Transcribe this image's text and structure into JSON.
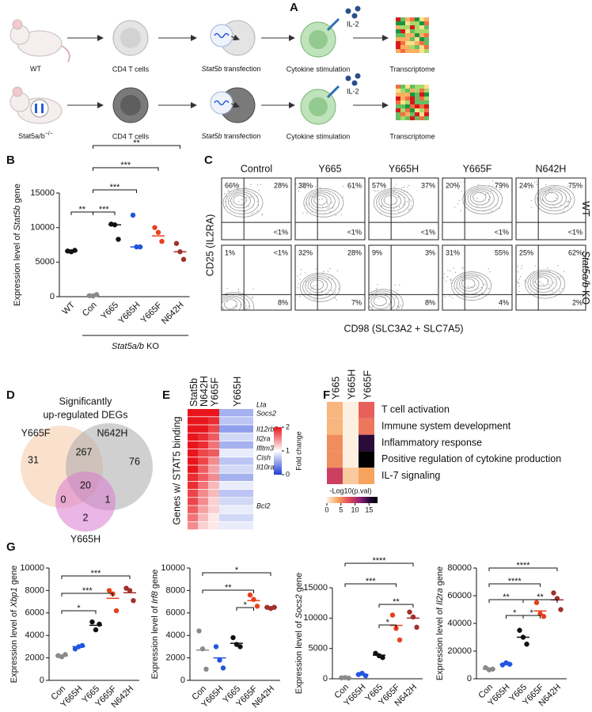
{
  "panel_a": {
    "label": "A",
    "rows": [
      {
        "source": {
          "name": "WT"
        },
        "cells": "CD4 T cells",
        "transfection": {
          "gene": "Stat5b",
          "text": " transfection"
        },
        "stimulation": "Cytokine stimulation",
        "cytokine": "IL-2",
        "readout": "Transcriptome"
      },
      {
        "source": {
          "name": "Stat5a/b",
          "sup": "−/−"
        },
        "cells": "CD4 T cells",
        "transfection": {
          "gene": "Stat5b",
          "text": " transfection"
        },
        "stimulation": "Cytokine stimulation",
        "cytokine": "IL-2",
        "readout": "Transcriptome"
      }
    ]
  },
  "panel_b": {
    "label": "B",
    "ylabel": {
      "pre": "Expression level of ",
      "gene": "Stat5b",
      "post": " gene"
    },
    "categories": [
      "WT",
      "Con",
      "Y665",
      "Y665H",
      "Y665F",
      "N642H"
    ],
    "colors": [
      "#111111",
      "#8a8a8a",
      "#111111",
      "#2255e0",
      "#e8401c",
      "#a0302c"
    ],
    "points": [
      [
        6600,
        6500,
        6700
      ],
      [
        150,
        100,
        300
      ],
      [
        10500,
        10400,
        8300
      ],
      [
        11800,
        7200,
        7200
      ],
      [
        10000,
        9300,
        8000
      ],
      [
        7700,
        6500,
        5400
      ]
    ],
    "means": [
      6600,
      180,
      10400,
      7200,
      8800,
      6500
    ],
    "ylim": [
      0,
      15000
    ],
    "yticks": [
      0,
      5000,
      10000,
      15000
    ],
    "group_label": {
      "gene": "Stat5a/b",
      "text": " KO"
    },
    "significance": [
      {
        "from": 0,
        "to": 1,
        "label": "**"
      },
      {
        "from": 1,
        "to": 2,
        "label": "***"
      },
      {
        "from": 1,
        "to": 3,
        "label": "***"
      },
      {
        "from": 1,
        "to": 4,
        "label": "***"
      },
      {
        "from": 1,
        "to": 5,
        "label": "**"
      }
    ]
  },
  "panel_c": {
    "label": "C",
    "columns": [
      "Control",
      "Y665",
      "Y665H",
      "Y665F",
      "N642H"
    ],
    "rows": [
      {
        "name": {
          "text": "WT"
        },
        "quadrants": [
          [
            "66%",
            "28%",
            "<1%"
          ],
          [
            "38%",
            "61%",
            "<1%"
          ],
          [
            "57%",
            "37%",
            "<1%"
          ],
          [
            "20%",
            "79%",
            "<1%"
          ],
          [
            "24%",
            "75%",
            "<1%"
          ]
        ]
      },
      {
        "name": {
          "gene": "Stat5a/b",
          "text": " KO"
        },
        "quadrants": [
          [
            "1%",
            "<1%",
            "8%"
          ],
          [
            "32%",
            "28%",
            "7%"
          ],
          [
            "9%",
            "3%",
            "8%"
          ],
          [
            "31%",
            "55%",
            "4%"
          ],
          [
            "25%",
            "62%",
            "2%"
          ]
        ]
      }
    ],
    "xlabel": "CD98 (SLC3A2 + SLC7A5)",
    "ylabel": "CD25 (IL2RA)"
  },
  "panel_d": {
    "label": "D",
    "title": [
      "Significantly",
      "up-regulated DEGs"
    ],
    "sets": [
      "Y665F",
      "N642H",
      "Y665H"
    ],
    "regions": [
      31,
      267,
      76,
      20,
      0,
      1,
      2
    ]
  },
  "panel_e": {
    "label": "E",
    "columns": [
      "Stat5b",
      "N642H",
      "Y665F",
      "Y665H"
    ],
    "ylabel": "Genes w/ STAT5 binding",
    "genes": [
      "Lta",
      "Socs2",
      "Il12rb2",
      "Il2ra",
      "Ifitm3",
      "Cish",
      "Il10ra",
      "Bcl2"
    ],
    "values": [
      [
        2,
        2,
        2,
        0.6
      ],
      [
        2,
        2,
        1.9,
        0.7
      ],
      [
        2,
        2,
        1.8,
        0.5
      ],
      [
        2,
        1.9,
        1.7,
        0.8
      ],
      [
        2,
        1.9,
        1.6,
        0.6
      ],
      [
        2,
        1.8,
        1.7,
        0.9
      ],
      [
        2,
        1.8,
        1.5,
        0.7
      ],
      [
        2,
        1.7,
        1.4,
        0.8
      ],
      [
        1.9,
        1.7,
        1.5,
        0.6
      ],
      [
        1.9,
        1.6,
        1.3,
        0.9
      ],
      [
        1.8,
        1.5,
        1.3,
        0.7
      ],
      [
        1.8,
        1.5,
        1.2,
        0.8
      ],
      [
        1.7,
        1.4,
        1.2,
        0.9
      ],
      [
        1.6,
        1.3,
        1.1,
        0.8
      ],
      [
        1.5,
        1.2,
        1.1,
        0.9
      ]
    ],
    "clim": [
      0,
      2
    ],
    "cticks": [
      0,
      1,
      2
    ],
    "clabel": "Fold change"
  },
  "panel_f": {
    "label": "F",
    "columns": [
      "Y665",
      "Y665H",
      "Y665F"
    ],
    "terms": [
      "T cell activation",
      "Immune system development",
      "Inflammatory response",
      "Positive regulation of cytokine production",
      "IL-7 signaling"
    ],
    "values": [
      [
        3,
        0,
        7
      ],
      [
        3,
        0,
        6
      ],
      [
        5,
        0,
        15
      ],
      [
        5,
        0,
        18
      ],
      [
        9,
        2,
        4
      ]
    ],
    "clim": [
      0,
      18
    ],
    "cticks": [
      0,
      5,
      10,
      15
    ],
    "clabel": "-Log10(p.val)"
  },
  "panel_g": {
    "label": "G",
    "categories": [
      "Con",
      "Y665H",
      "Y665",
      "Y665F",
      "N642H"
    ],
    "colors": [
      "#8a8a8a",
      "#2255e0",
      "#111111",
      "#e8401c",
      "#a0302c"
    ],
    "plots": [
      {
        "ylabel": {
          "pre": "Expression level of ",
          "gene": "Xbp1",
          "post": " gene"
        },
        "points": [
          [
            2200,
            2100,
            2300
          ],
          [
            2800,
            3000,
            3100
          ],
          [
            5200,
            4500,
            5000
          ],
          [
            8000,
            7700,
            6200
          ],
          [
            8200,
            8000,
            7100
          ]
        ],
        "means": [
          2200,
          3000,
          4900,
          7300,
          7800
        ],
        "ylim": [
          0,
          10000
        ],
        "yticks": [
          0,
          2000,
          4000,
          6000,
          8000,
          10000
        ],
        "significance": [
          {
            "from": 0,
            "to": 2,
            "label": "*"
          },
          {
            "from": 0,
            "to": 3,
            "label": "***"
          },
          {
            "from": 0,
            "to": 4,
            "label": "***"
          }
        ]
      },
      {
        "ylabel": {
          "pre": "Expression level of ",
          "gene": "Irf8",
          "post": " gene"
        },
        "points": [
          [
            4400,
            2800,
            1000
          ],
          [
            3000,
            1800,
            1100
          ],
          [
            3800,
            3200,
            3000
          ],
          [
            7600,
            7200,
            6600
          ],
          [
            6500,
            6400,
            6500
          ]
        ],
        "means": [
          2700,
          2000,
          3300,
          7100,
          6500
        ],
        "ylim": [
          0,
          10000
        ],
        "yticks": [
          0,
          2000,
          4000,
          6000,
          8000,
          10000
        ],
        "significance": [
          {
            "from": 2,
            "to": 3,
            "label": "*"
          },
          {
            "from": 0,
            "to": 3,
            "label": "**"
          },
          {
            "from": 0,
            "to": 4,
            "label": "*"
          }
        ]
      },
      {
        "ylabel": {
          "pre": "Expression level of ",
          "gene": "Socs2",
          "post": " gene"
        },
        "points": [
          [
            150,
            200,
            100
          ],
          [
            700,
            900,
            500
          ],
          [
            4200,
            3800,
            3500
          ],
          [
            10500,
            8300,
            6400
          ],
          [
            11000,
            10200,
            8500
          ]
        ],
        "means": [
          150,
          700,
          3900,
          8800,
          10000
        ],
        "ylim": [
          0,
          15000
        ],
        "yticks": [
          0,
          5000,
          10000,
          15000
        ],
        "significance": [
          {
            "from": 2,
            "to": 3,
            "label": "*"
          },
          {
            "from": 2,
            "to": 4,
            "label": "**"
          },
          {
            "from": 0,
            "to": 3,
            "label": "***"
          },
          {
            "from": 0,
            "to": 4,
            "label": "****"
          }
        ]
      },
      {
        "ylabel": {
          "pre": "Expression level of ",
          "gene": "Il2ra",
          "post": " gene"
        },
        "points": [
          [
            8000,
            6500,
            7000
          ],
          [
            10000,
            11500,
            10500
          ],
          [
            35000,
            30000,
            25000
          ],
          [
            55000,
            47000,
            45000
          ],
          [
            62000,
            58000,
            50000
          ]
        ],
        "means": [
          7000,
          10500,
          30000,
          49000,
          57000
        ],
        "ylim": [
          0,
          80000
        ],
        "yticks": [
          0,
          20000,
          40000,
          60000,
          80000
        ],
        "significance": [
          {
            "from": 1,
            "to": 2,
            "label": "*"
          },
          {
            "from": 2,
            "to": 3,
            "label": "*"
          },
          {
            "from": 0,
            "to": 2,
            "label": "**"
          },
          {
            "from": 2,
            "to": 4,
            "label": "**"
          },
          {
            "from": 0,
            "to": 3,
            "label": "****"
          },
          {
            "from": 0,
            "to": 4,
            "label": "****"
          }
        ]
      }
    ]
  }
}
